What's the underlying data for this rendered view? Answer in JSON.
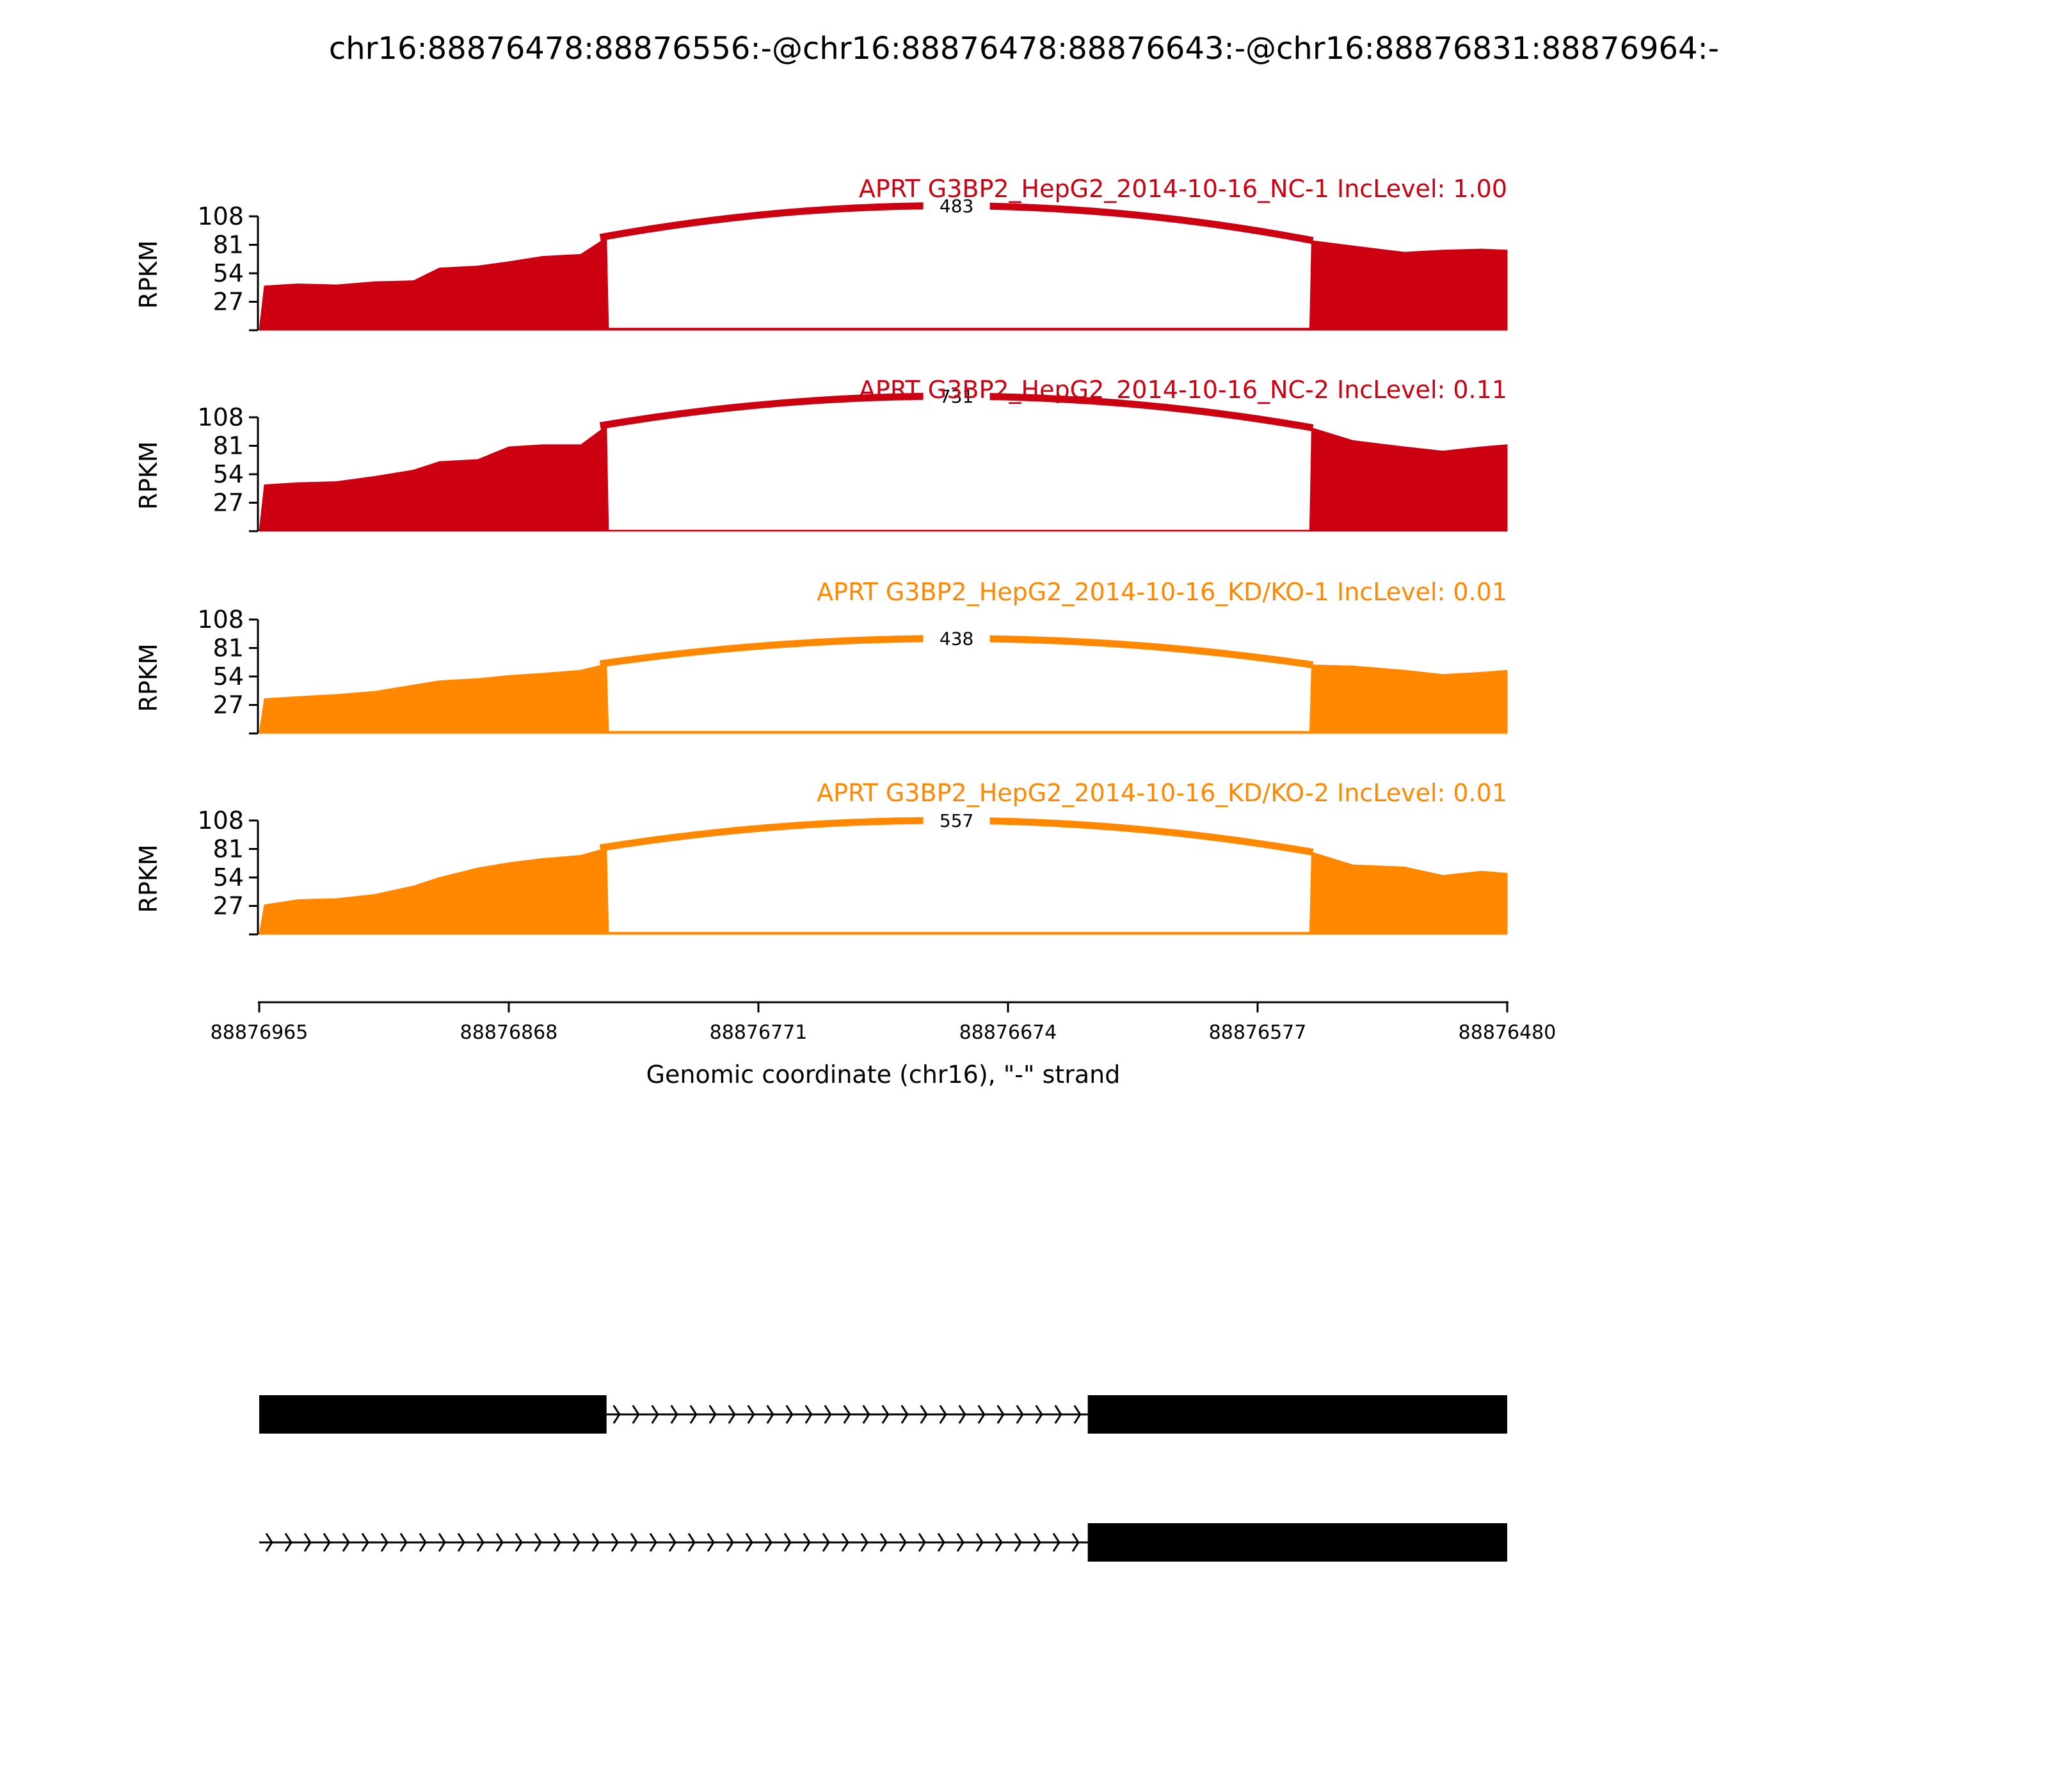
{
  "chart_data": {
    "type": "area",
    "title": "chr16:88876478:88876556:-@chr16:88876478:88876643:-@chr16:88876831:88876964:-",
    "ylabel": "RPKM",
    "xlabel": "Genomic coordinate (chr16), \"-\" strand",
    "x_range": [
      88876965,
      88876480
    ],
    "x_ticks": [
      "88876965",
      "88876868",
      "88876771",
      "88876674",
      "88876577",
      "88876480"
    ],
    "y_ticks": [
      "27",
      "54",
      "81",
      "108"
    ],
    "ylim": [
      0,
      108
    ],
    "exon_regions": [
      {
        "start": 88876965,
        "end": 88876830
      },
      {
        "start": 88876556,
        "end": 88876480
      }
    ],
    "tracks": [
      {
        "label": "APRT G3BP2_HepG2_2014-10-16_NC-1 IncLevel: 1.00",
        "color": "#cc0011",
        "junction_count": "483",
        "junction_peak": 118,
        "coverage": [
          [
            88876965,
            0
          ],
          [
            88876963,
            42
          ],
          [
            88876950,
            44
          ],
          [
            88876935,
            43
          ],
          [
            88876920,
            46
          ],
          [
            88876905,
            47
          ],
          [
            88876895,
            59
          ],
          [
            88876880,
            61
          ],
          [
            88876868,
            65
          ],
          [
            88876855,
            70
          ],
          [
            88876840,
            72
          ],
          [
            88876830,
            88
          ],
          [
            88876556,
            85
          ],
          [
            88876540,
            80
          ],
          [
            88876520,
            74
          ],
          [
            88876505,
            76
          ],
          [
            88876490,
            77
          ],
          [
            88876480,
            76
          ]
        ],
        "intron_coverage": 2
      },
      {
        "label": "APRT G3BP2_HepG2_2014-10-16_NC-2 IncLevel: 0.11",
        "color": "#cc0011",
        "junction_count": "731",
        "junction_peak": 128,
        "coverage": [
          [
            88876965,
            0
          ],
          [
            88876963,
            44
          ],
          [
            88876950,
            46
          ],
          [
            88876935,
            47
          ],
          [
            88876920,
            52
          ],
          [
            88876905,
            58
          ],
          [
            88876895,
            66
          ],
          [
            88876880,
            68
          ],
          [
            88876868,
            80
          ],
          [
            88876855,
            82
          ],
          [
            88876840,
            82
          ],
          [
            88876830,
            100
          ],
          [
            88876556,
            98
          ],
          [
            88876540,
            86
          ],
          [
            88876520,
            80
          ],
          [
            88876505,
            76
          ],
          [
            88876490,
            80
          ],
          [
            88876480,
            82
          ]
        ],
        "intron_coverage": 1
      },
      {
        "label": "APRT G3BP2_HepG2_2014-10-16_KD/KO-1 IncLevel: 0.01",
        "color": "#ff8800",
        "junction_count": "438",
        "junction_peak": 90,
        "coverage": [
          [
            88876965,
            0
          ],
          [
            88876963,
            33
          ],
          [
            88876950,
            35
          ],
          [
            88876935,
            37
          ],
          [
            88876920,
            40
          ],
          [
            88876905,
            46
          ],
          [
            88876895,
            50
          ],
          [
            88876880,
            52
          ],
          [
            88876868,
            55
          ],
          [
            88876855,
            57
          ],
          [
            88876840,
            60
          ],
          [
            88876830,
            66
          ],
          [
            88876556,
            65
          ],
          [
            88876540,
            64
          ],
          [
            88876520,
            60
          ],
          [
            88876505,
            56
          ],
          [
            88876490,
            58
          ],
          [
            88876480,
            60
          ]
        ],
        "intron_coverage": 2
      },
      {
        "label": "APRT G3BP2_HepG2_2014-10-16_KD/KO-2 IncLevel: 0.01",
        "color": "#ff8800",
        "junction_count": "557",
        "junction_peak": 108,
        "coverage": [
          [
            88876965,
            0
          ],
          [
            88876963,
            28
          ],
          [
            88876950,
            33
          ],
          [
            88876935,
            34
          ],
          [
            88876920,
            38
          ],
          [
            88876905,
            46
          ],
          [
            88876895,
            54
          ],
          [
            88876880,
            63
          ],
          [
            88876868,
            68
          ],
          [
            88876855,
            72
          ],
          [
            88876840,
            75
          ],
          [
            88876830,
            82
          ],
          [
            88876556,
            78
          ],
          [
            88876540,
            66
          ],
          [
            88876520,
            64
          ],
          [
            88876505,
            56
          ],
          [
            88876490,
            60
          ],
          [
            88876480,
            58
          ]
        ],
        "intron_coverage": 2
      }
    ],
    "isoforms": [
      {
        "exons": [
          [
            88876965,
            88876830
          ],
          [
            88876643,
            88876480
          ]
        ],
        "introns": [
          [
            88876830,
            88876643
          ]
        ]
      },
      {
        "exons": [
          [
            88876643,
            88876480
          ]
        ],
        "introns": [
          [
            88876965,
            88876643
          ]
        ]
      }
    ]
  }
}
